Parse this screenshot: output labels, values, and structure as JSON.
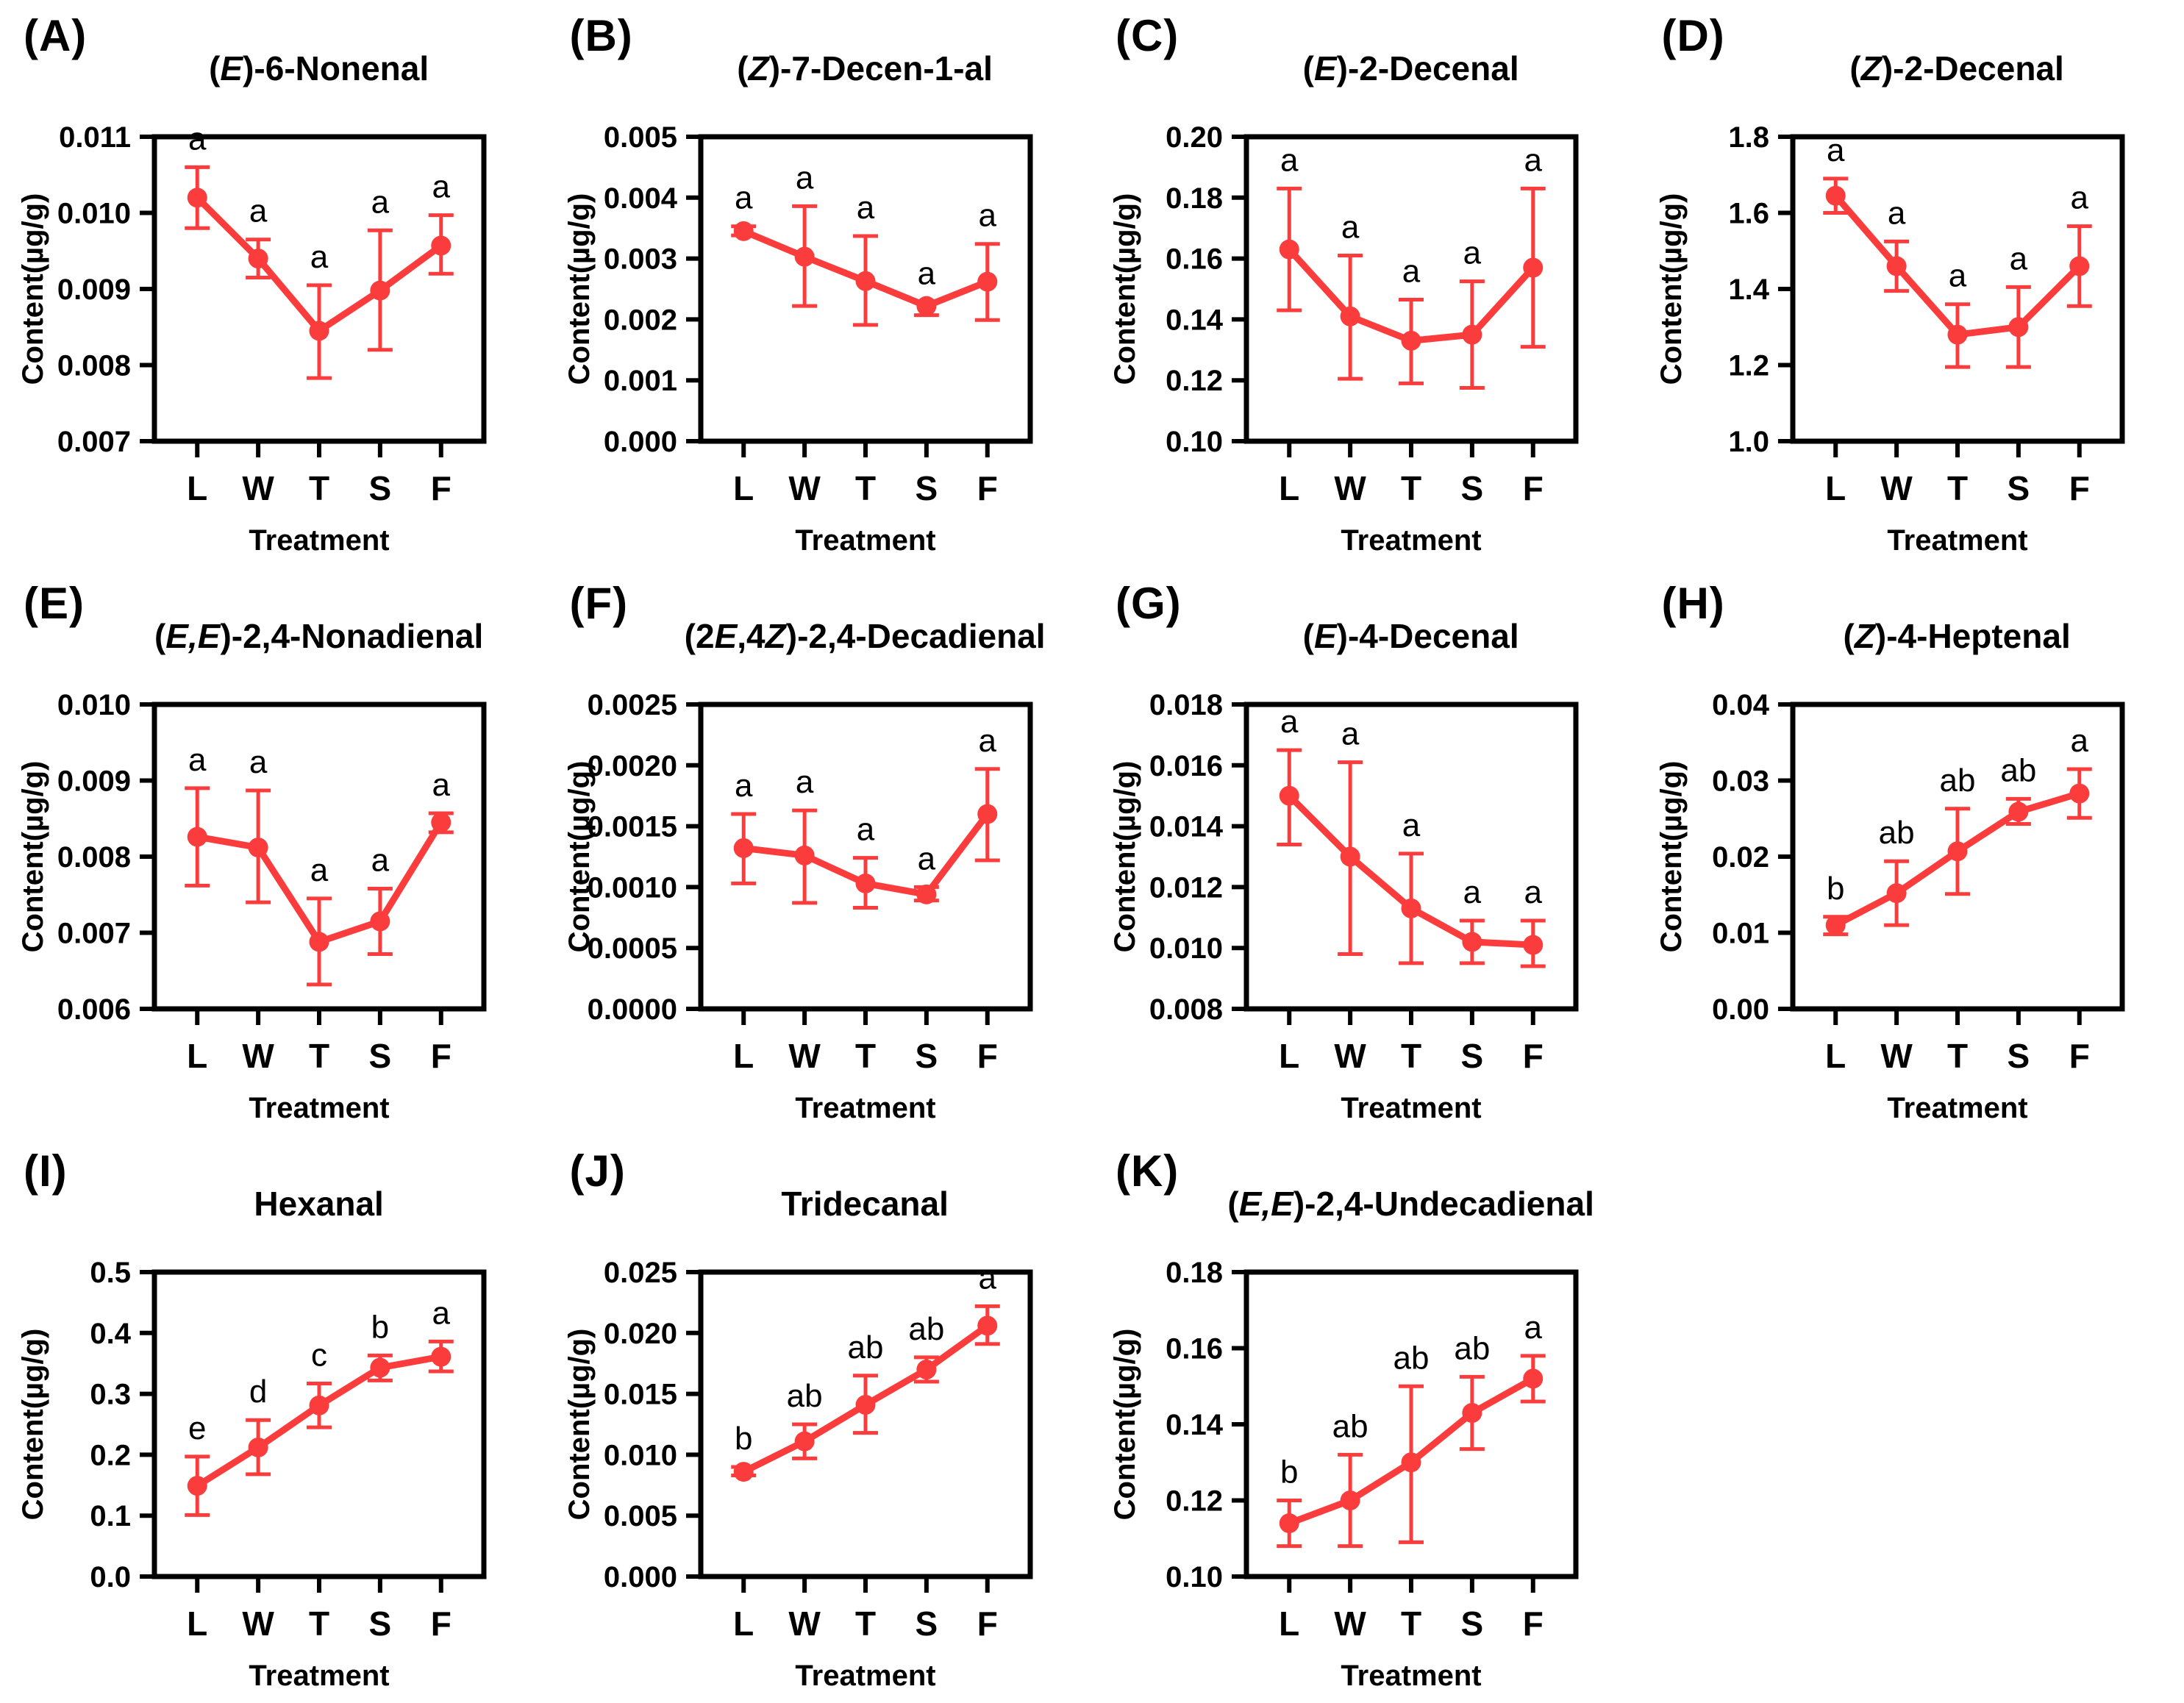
{
  "style": {
    "accent_red": "#FA3C3C",
    "axis_black": "#000000",
    "background": "#FFFFFF"
  },
  "figure": {
    "x_categories": [
      "L",
      "W",
      "T",
      "S",
      "F"
    ],
    "x_axis_label": "Treatment",
    "y_axis_label": "Content(µg/g)"
  },
  "chart_data": [
    {
      "type": "line",
      "letter": "(A)",
      "title": "(*E*)-6-Nonenal",
      "xlabel": "Treatment",
      "ylabel": "Content(µg/g)",
      "categories": [
        "L",
        "W",
        "T",
        "S",
        "F"
      ],
      "values": [
        0.0102,
        0.0094,
        0.00845,
        0.00898,
        0.00957
      ],
      "err_lo": [
        0.0098,
        0.00915,
        0.00783,
        0.0082,
        0.0092
      ],
      "err_hi": [
        0.0106,
        0.00965,
        0.00905,
        0.00977,
        0.00997
      ],
      "sig_labels": [
        "a",
        "a",
        "a",
        "a",
        "a"
      ],
      "ylim": [
        0.007,
        0.011
      ],
      "ytick_values": [
        0.007,
        0.008,
        0.009,
        0.01,
        0.011
      ],
      "ytick_labels": [
        "0.007",
        "0.008",
        "0.009",
        "0.010",
        "0.011"
      ]
    },
    {
      "type": "line",
      "letter": "(B)",
      "title": "(*Z*)-7-Decen-1-al",
      "xlabel": "Treatment",
      "ylabel": "Content(µg/g)",
      "categories": [
        "L",
        "W",
        "T",
        "S",
        "F"
      ],
      "values": [
        0.00345,
        0.00303,
        0.00263,
        0.00222,
        0.00262
      ],
      "err_lo": [
        0.00338,
        0.00222,
        0.00191,
        0.00207,
        0.00199
      ],
      "err_hi": [
        0.00353,
        0.00386,
        0.00337,
        0.00229,
        0.00324
      ],
      "sig_labels": [
        "a",
        "a",
        "a",
        "a",
        "a"
      ],
      "ylim": [
        0.0,
        0.005
      ],
      "ytick_values": [
        0.0,
        0.001,
        0.002,
        0.003,
        0.004,
        0.005
      ],
      "ytick_labels": [
        "0.000",
        "0.001",
        "0.002",
        "0.003",
        "0.004",
        "0.005"
      ]
    },
    {
      "type": "line",
      "letter": "(C)",
      "title": "(*E*)-2-Decenal",
      "xlabel": "Treatment",
      "ylabel": "Content(µg/g)",
      "categories": [
        "L",
        "W",
        "T",
        "S",
        "F"
      ],
      "values": [
        0.163,
        0.141,
        0.133,
        0.135,
        0.157
      ],
      "err_lo": [
        0.143,
        0.1205,
        0.119,
        0.1175,
        0.131
      ],
      "err_hi": [
        0.183,
        0.161,
        0.1465,
        0.1525,
        0.183
      ],
      "sig_labels": [
        "a",
        "a",
        "a",
        "a",
        "a"
      ],
      "ylim": [
        0.1,
        0.2
      ],
      "ytick_values": [
        0.1,
        0.12,
        0.14,
        0.16,
        0.18,
        0.2
      ],
      "ytick_labels": [
        "0.10",
        "0.12",
        "0.14",
        "0.16",
        "0.18",
        "0.20"
      ]
    },
    {
      "type": "line",
      "letter": "(D)",
      "title": "(*Z*)-2-Decenal",
      "xlabel": "Treatment",
      "ylabel": "Content(µg/g)",
      "categories": [
        "L",
        "W",
        "T",
        "S",
        "F"
      ],
      "values": [
        1.645,
        1.46,
        1.28,
        1.3,
        1.46
      ],
      "err_lo": [
        1.6,
        1.395,
        1.195,
        1.195,
        1.355
      ],
      "err_hi": [
        1.69,
        1.525,
        1.36,
        1.405,
        1.565
      ],
      "sig_labels": [
        "a",
        "a",
        "a",
        "a",
        "a"
      ],
      "ylim": [
        1.0,
        1.8
      ],
      "ytick_values": [
        1.0,
        1.2,
        1.4,
        1.6,
        1.8
      ],
      "ytick_labels": [
        "1.0",
        "1.2",
        "1.4",
        "1.6",
        "1.8"
      ]
    },
    {
      "type": "line",
      "letter": "(E)",
      "title": "(*E,E*)-2,4-Nonadienal",
      "xlabel": "Treatment",
      "ylabel": "Content(µg/g)",
      "categories": [
        "L",
        "W",
        "T",
        "S",
        "F"
      ],
      "values": [
        0.00826,
        0.00812,
        0.00688,
        0.00715,
        0.00845
      ],
      "err_lo": [
        0.00762,
        0.0074,
        0.00632,
        0.00672,
        0.00832
      ],
      "err_hi": [
        0.0089,
        0.00887,
        0.00745,
        0.00758,
        0.00857
      ],
      "sig_labels": [
        "a",
        "a",
        "a",
        "a",
        "a"
      ],
      "ylim": [
        0.006,
        0.01
      ],
      "ytick_values": [
        0.006,
        0.007,
        0.008,
        0.009,
        0.01
      ],
      "ytick_labels": [
        "0.006",
        "0.007",
        "0.008",
        "0.009",
        "0.010"
      ]
    },
    {
      "type": "line",
      "letter": "(F)",
      "title": "(2*E*,4*Z*)-2,4-Decadienal",
      "xlabel": "Treatment",
      "ylabel": "Content(µg/g)",
      "categories": [
        "L",
        "W",
        "T",
        "S",
        "F"
      ],
      "values": [
        0.00132,
        0.00126,
        0.00103,
        0.00094,
        0.0016
      ],
      "err_lo": [
        0.00103,
        0.00087,
        0.00083,
        0.00089,
        0.00122
      ],
      "err_hi": [
        0.0016,
        0.00163,
        0.00124,
        0.001,
        0.00197
      ],
      "sig_labels": [
        "a",
        "a",
        "a",
        "a",
        "a"
      ],
      "ylim": [
        0.0,
        0.0025
      ],
      "ytick_values": [
        0.0,
        0.0005,
        0.001,
        0.0015,
        0.002,
        0.0025
      ],
      "ytick_labels": [
        "0.0000",
        "0.0005",
        "0.0010",
        "0.0015",
        "0.0020",
        "0.0025"
      ]
    },
    {
      "type": "line",
      "letter": "(G)",
      "title": "(*E*)-4-Decenal",
      "xlabel": "Treatment",
      "ylabel": "Content(µg/g)",
      "categories": [
        "L",
        "W",
        "T",
        "S",
        "F"
      ],
      "values": [
        0.015,
        0.013,
        0.0113,
        0.0102,
        0.0101
      ],
      "err_lo": [
        0.0134,
        0.0098,
        0.0095,
        0.0095,
        0.0094
      ],
      "err_hi": [
        0.0165,
        0.0161,
        0.0131,
        0.0109,
        0.0109
      ],
      "sig_labels": [
        "a",
        "a",
        "a",
        "a",
        "a"
      ],
      "ylim": [
        0.008,
        0.018
      ],
      "ytick_values": [
        0.008,
        0.01,
        0.012,
        0.014,
        0.016,
        0.018
      ],
      "ytick_labels": [
        "0.008",
        "0.010",
        "0.012",
        "0.014",
        "0.016",
        "0.018"
      ]
    },
    {
      "type": "line",
      "letter": "(H)",
      "title": "(*Z*)-4-Heptenal",
      "xlabel": "Treatment",
      "ylabel": "Content(µg/g)",
      "categories": [
        "L",
        "W",
        "T",
        "S",
        "F"
      ],
      "values": [
        0.011,
        0.0152,
        0.0207,
        0.0259,
        0.0283
      ],
      "err_lo": [
        0.0098,
        0.011,
        0.0151,
        0.0243,
        0.0251
      ],
      "err_hi": [
        0.0121,
        0.0194,
        0.0263,
        0.0276,
        0.0315
      ],
      "sig_labels": [
        "b",
        "ab",
        "ab",
        "ab",
        "a"
      ],
      "ylim": [
        0.0,
        0.04
      ],
      "ytick_values": [
        0.0,
        0.01,
        0.02,
        0.03,
        0.04
      ],
      "ytick_labels": [
        "0.00",
        "0.01",
        "0.02",
        "0.03",
        "0.04"
      ]
    },
    {
      "type": "line",
      "letter": "(I)",
      "title": "Hexanal",
      "xlabel": "Treatment",
      "ylabel": "Content(µg/g)",
      "categories": [
        "L",
        "W",
        "T",
        "S",
        "F"
      ],
      "values": [
        0.149,
        0.212,
        0.281,
        0.343,
        0.361
      ],
      "err_lo": [
        0.101,
        0.168,
        0.245,
        0.322,
        0.337
      ],
      "err_hi": [
        0.197,
        0.257,
        0.317,
        0.363,
        0.386
      ],
      "sig_labels": [
        "e",
        "d",
        "c",
        "b",
        "a"
      ],
      "ylim": [
        0.0,
        0.5
      ],
      "ytick_values": [
        0.0,
        0.1,
        0.2,
        0.3,
        0.4,
        0.5
      ],
      "ytick_labels": [
        "0.0",
        "0.1",
        "0.2",
        "0.3",
        "0.4",
        "0.5"
      ]
    },
    {
      "type": "line",
      "letter": "(J)",
      "title": "Tridecanal",
      "xlabel": "Treatment",
      "ylabel": "Content(µg/g)",
      "categories": [
        "L",
        "W",
        "T",
        "S",
        "F"
      ],
      "values": [
        0.0086,
        0.0111,
        0.0141,
        0.017,
        0.0206
      ],
      "err_lo": [
        0.0083,
        0.0097,
        0.0118,
        0.016,
        0.0191
      ],
      "err_hi": [
        0.009,
        0.0125,
        0.0165,
        0.018,
        0.0222
      ],
      "sig_labels": [
        "b",
        "ab",
        "ab",
        "ab",
        "a"
      ],
      "ylim": [
        0.0,
        0.025
      ],
      "ytick_values": [
        0.0,
        0.005,
        0.01,
        0.015,
        0.02,
        0.025
      ],
      "ytick_labels": [
        "0.000",
        "0.005",
        "0.010",
        "0.015",
        "0.020",
        "0.025"
      ]
    },
    {
      "type": "line",
      "letter": "(K)",
      "title": "(*E,E*)-2,4-Undecadienal",
      "xlabel": "Treatment",
      "ylabel": "Content(µg/g)",
      "categories": [
        "L",
        "W",
        "T",
        "S",
        "F"
      ],
      "values": [
        0.114,
        0.12,
        0.13,
        0.143,
        0.152
      ],
      "err_lo": [
        0.108,
        0.108,
        0.109,
        0.1335,
        0.146
      ],
      "err_hi": [
        0.12,
        0.132,
        0.15,
        0.1525,
        0.158
      ],
      "sig_labels": [
        "b",
        "ab",
        "ab",
        "ab",
        "a"
      ],
      "ylim": [
        0.1,
        0.18
      ],
      "ytick_values": [
        0.1,
        0.12,
        0.14,
        0.16,
        0.18
      ],
      "ytick_labels": [
        "0.10",
        "0.12",
        "0.14",
        "0.16",
        "0.18"
      ]
    }
  ]
}
